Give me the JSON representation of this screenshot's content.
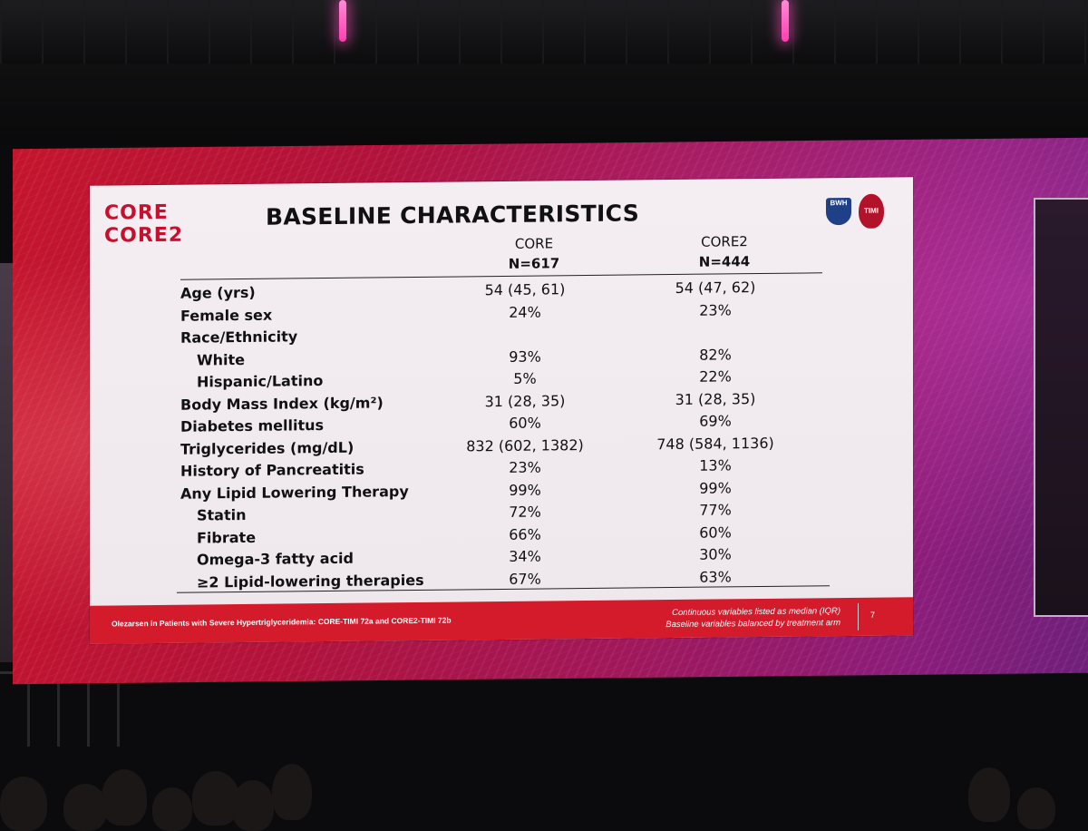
{
  "slide": {
    "logo_lines": [
      "CORE",
      "CORE2"
    ],
    "title": "BASELINE CHARACTERISTICS",
    "badges": {
      "left": "BWH",
      "right": "TIMI"
    },
    "columns": [
      {
        "name": "CORE",
        "n": "N=617"
      },
      {
        "name": "CORE2",
        "n": "N=444"
      }
    ],
    "rows": [
      {
        "label": "Age (yrs)",
        "core": "54 (45, 61)",
        "core2": "54 (47, 62)",
        "indent": false
      },
      {
        "label": "Female sex",
        "core": "24%",
        "core2": "23%",
        "indent": false
      },
      {
        "label": "Race/Ethnicity",
        "core": "",
        "core2": "",
        "indent": false
      },
      {
        "label": "White",
        "core": "93%",
        "core2": "82%",
        "indent": true
      },
      {
        "label": "Hispanic/Latino",
        "core": "5%",
        "core2": "22%",
        "indent": true
      },
      {
        "label": "Body Mass Index (kg/m²)",
        "core": "31 (28, 35)",
        "core2": "31 (28, 35)",
        "indent": false
      },
      {
        "label": "Diabetes mellitus",
        "core": "60%",
        "core2": "69%",
        "indent": false
      },
      {
        "label": "Triglycerides (mg/dL)",
        "core": "832 (602, 1382)",
        "core2": "748 (584, 1136)",
        "indent": false
      },
      {
        "label": "History of Pancreatitis",
        "core": "23%",
        "core2": "13%",
        "indent": false
      },
      {
        "label": "Any Lipid Lowering Therapy",
        "core": "99%",
        "core2": "99%",
        "indent": false
      },
      {
        "label": "Statin",
        "core": "72%",
        "core2": "77%",
        "indent": true
      },
      {
        "label": "Fibrate",
        "core": "66%",
        "core2": "60%",
        "indent": true
      },
      {
        "label": "Omega-3 fatty acid",
        "core": "34%",
        "core2": "30%",
        "indent": true
      },
      {
        "label": "≥2 Lipid-lowering therapies",
        "core": "67%",
        "core2": "63%",
        "indent": true
      }
    ],
    "footer": {
      "left": "Olezarsen in Patients with Severe Hypertriglyceridemia: CORE-TIMI 72a and CORE2-TIMI 72b",
      "right_line1": "Continuous variables listed as median (IQR)",
      "right_line2": "Baseline variables balanced by treatment arm",
      "slide_number": "7"
    },
    "colors": {
      "brand_red": "#c8102e",
      "footer_red": "#d41b2c"
    }
  }
}
